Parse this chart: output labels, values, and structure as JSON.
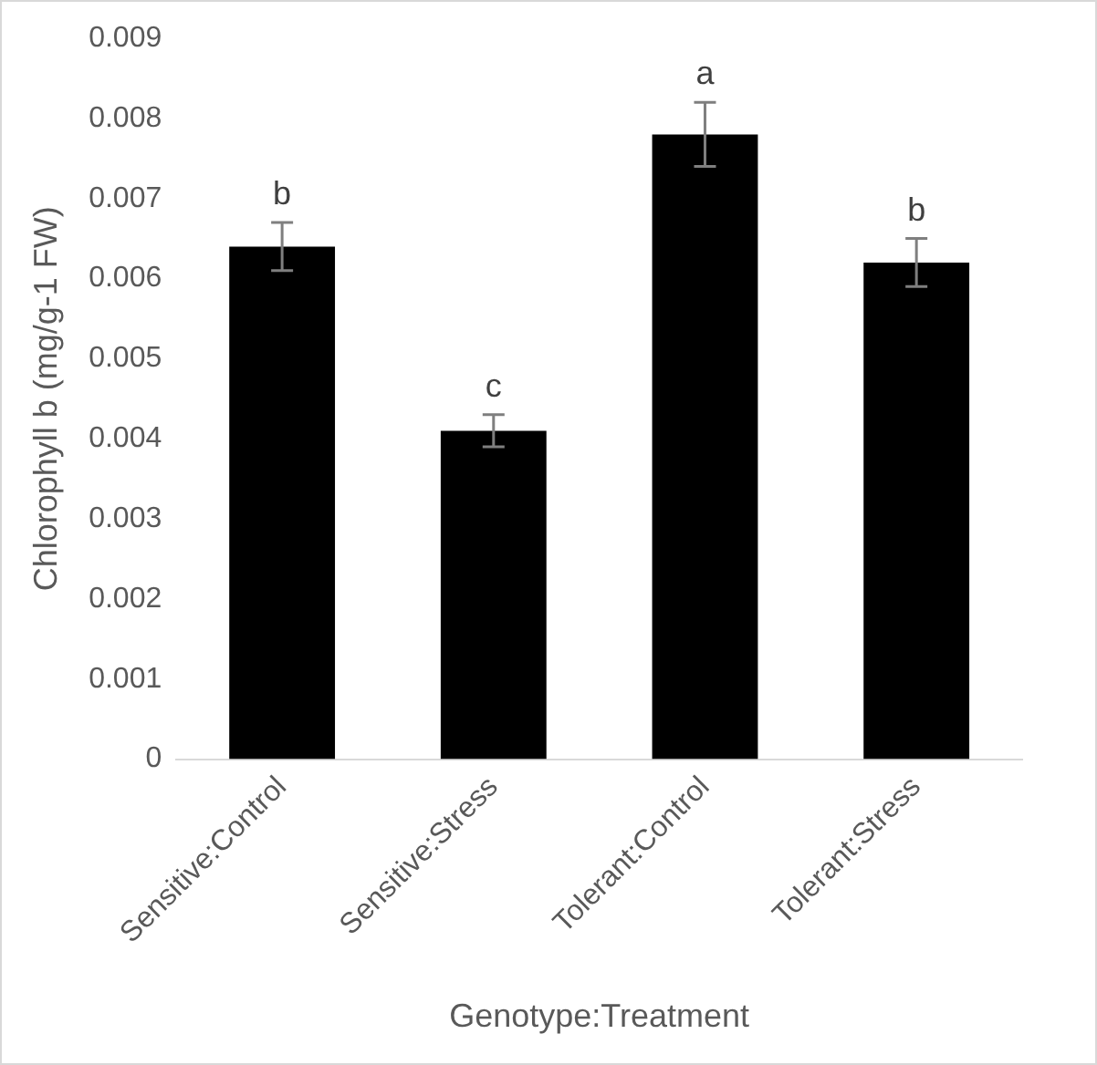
{
  "chart_data": {
    "type": "bar",
    "xlabel": "Genotype:Treatment",
    "ylabel": "Chlorophyll b (mg/g-1 FW)",
    "categories": [
      "Sensitive:Control",
      "Sensitive:Stress",
      "Tolerant:Control",
      "Tolerant:Stress"
    ],
    "values": [
      0.0064,
      0.0041,
      0.0078,
      0.0062
    ],
    "color": "#000000",
    "errors": [
      0.0003,
      0.0002,
      0.0004,
      0.0003
    ],
    "ylim": [
      0,
      0.009
    ],
    "yticks": [
      0,
      0.001,
      0.002,
      0.003,
      0.004,
      0.005,
      0.006,
      0.007,
      0.008,
      0.009
    ],
    "grid": false,
    "legend": false,
    "annotations": [
      {
        "text": "b",
        "x": "Sensitive:Control",
        "y": 0.0067
      },
      {
        "text": "c",
        "x": "Sensitive:Stress",
        "y": 0.0043
      },
      {
        "text": "a",
        "x": "Tolerant:Control",
        "y": 0.0082
      },
      {
        "text": "b",
        "x": "Tolerant:Stress",
        "y": 0.0065
      }
    ]
  }
}
